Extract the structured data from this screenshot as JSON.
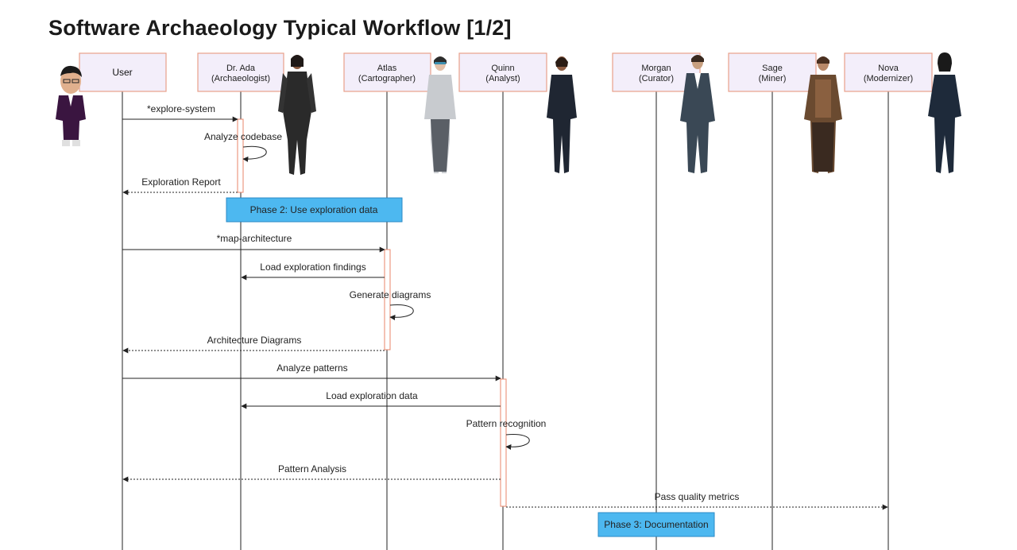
{
  "title": "Software Archaeology Typical Workflow [1/2]",
  "participants": [
    {
      "id": "user",
      "line1": "User",
      "line2": "",
      "avatar": "user-avatar"
    },
    {
      "id": "ada",
      "line1": "Dr. Ada",
      "line2": "(Archaeologist)",
      "avatar": "archaeologist-avatar"
    },
    {
      "id": "atlas",
      "line1": "Atlas",
      "line2": "(Cartographer)",
      "avatar": "cartographer-avatar"
    },
    {
      "id": "quinn",
      "line1": "Quinn",
      "line2": "(Analyst)",
      "avatar": "analyst-avatar"
    },
    {
      "id": "morgan",
      "line1": "Morgan",
      "line2": "(Curator)",
      "avatar": "curator-avatar"
    },
    {
      "id": "sage",
      "line1": "Sage",
      "line2": "(Miner)",
      "avatar": "miner-avatar"
    },
    {
      "id": "nova",
      "line1": "Nova",
      "line2": "(Modernizer)",
      "avatar": "modernizer-avatar"
    }
  ],
  "messages": [
    {
      "from": "user",
      "to": "ada",
      "label": "*explore-system",
      "style": "solid"
    },
    {
      "from": "ada",
      "to": "ada",
      "label": "Analyze codebase",
      "style": "self"
    },
    {
      "from": "ada",
      "to": "user",
      "label": "Exploration Report",
      "style": "dashed"
    },
    {
      "from": "user",
      "to": "atlas",
      "label": "*map-architecture",
      "style": "solid"
    },
    {
      "from": "atlas",
      "to": "ada",
      "label": "Load exploration findings",
      "style": "solid"
    },
    {
      "from": "atlas",
      "to": "atlas",
      "label": "Generate diagrams",
      "style": "self"
    },
    {
      "from": "atlas",
      "to": "user",
      "label": "Architecture Diagrams",
      "style": "dashed"
    },
    {
      "from": "user",
      "to": "quinn",
      "label": "Analyze patterns",
      "style": "solid"
    },
    {
      "from": "quinn",
      "to": "ada",
      "label": "Load exploration data",
      "style": "solid"
    },
    {
      "from": "quinn",
      "to": "quinn",
      "label": "Pattern recognition",
      "style": "self"
    },
    {
      "from": "quinn",
      "to": "user",
      "label": "Pattern Analysis",
      "style": "dashed"
    },
    {
      "from": "quinn",
      "to": "nova",
      "label": "Pass quality metrics",
      "style": "dashed"
    }
  ],
  "notes": [
    {
      "label": "Phase 2: Use exploration data"
    },
    {
      "label": "Phase 3: Documentation"
    }
  ],
  "colors": {
    "participant_fill": "#f3eefa",
    "participant_border": "#e8a08a",
    "activation_border": "#e8866a",
    "note_fill": "#4db8f0",
    "note_border": "#2a8ac6",
    "line": "#222222"
  }
}
